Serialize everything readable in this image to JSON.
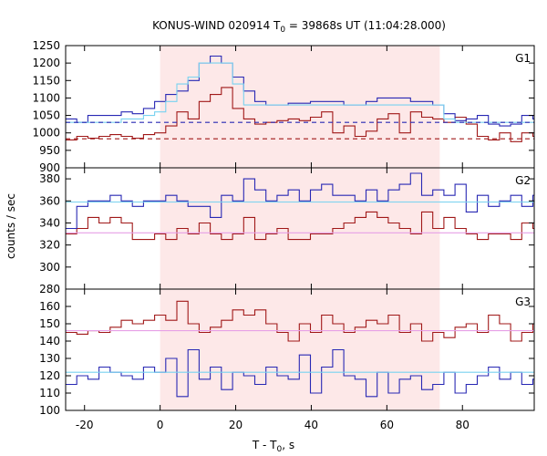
{
  "chart_data": {
    "type": "line",
    "title": "KONUS-WIND 020914 T",
    "title_sub": "0",
    "title_tail": " = 39868s UT (11:04:28.000)",
    "xlabel": "T - T",
    "xlabel_sub": "0",
    "xlabel_tail": ", s",
    "ylabel": "counts / sec",
    "xlim": [
      -25,
      99
    ],
    "xticks": [
      -20,
      0,
      20,
      40,
      60,
      80
    ],
    "shaded_interval": [
      0,
      74
    ],
    "colors": {
      "shade": "#fde8e8",
      "dark_red": "#a01818",
      "blue": "#2828b4",
      "cyan": "#78d2f0",
      "pink": "#e6a0e6"
    },
    "panels": [
      {
        "name": "G1",
        "ylim": [
          900,
          1250
        ],
        "yticks": [
          900,
          950,
          1000,
          1050,
          1100,
          1150,
          1200,
          1250
        ],
        "series": [
          {
            "color": "dark_red",
            "step": 2.944,
            "x0": -25,
            "values": [
              980,
              990,
              985,
              990,
              995,
              990,
              985,
              995,
              1000,
              1020,
              1060,
              1040,
              1090,
              1110,
              1130,
              1070,
              1040,
              1025,
              1030,
              1035,
              1040,
              1035,
              1045,
              1060,
              1000,
              1020,
              990,
              1005,
              1040,
              1055,
              1000,
              1060,
              1045,
              1040,
              1030,
              1045,
              1025,
              990,
              980,
              1000,
              975,
              1000,
              990,
              980
            ]
          },
          {
            "color": "blue",
            "step": 2.944,
            "x0": -25,
            "values": [
              1040,
              1030,
              1050,
              1050,
              1050,
              1060,
              1055,
              1070,
              1090,
              1110,
              1120,
              1150,
              1200,
              1220,
              1200,
              1160,
              1120,
              1090,
              1080,
              1080,
              1085,
              1085,
              1090,
              1090,
              1090,
              1080,
              1080,
              1090,
              1100,
              1100,
              1100,
              1090,
              1090,
              1080,
              1055,
              1035,
              1040,
              1050,
              1025,
              1020,
              1025,
              1050,
              1040,
              1000
            ]
          },
          {
            "color": "cyan",
            "step": 2.944,
            "x0": -25,
            "values": [
              1030,
              1030,
              1030,
              1030,
              1030,
              1040,
              1040,
              1050,
              1060,
              1090,
              1140,
              1160,
              1200,
              1200,
              1200,
              1140,
              1080,
              1080,
              1080,
              1080,
              1080,
              1080,
              1080,
              1080,
              1080,
              1080,
              1080,
              1080,
              1080,
              1080,
              1080,
              1080,
              1080,
              1080,
              1040,
              1030,
              1030,
              1030,
              1030,
              1030,
              1030,
              1030,
              1030,
              1030
            ]
          }
        ],
        "hlines": [
          {
            "color": "blue",
            "value": 1030,
            "dash": true
          },
          {
            "color": "dark_red",
            "value": 983,
            "dash": true
          }
        ]
      },
      {
        "name": "G2",
        "ylim": [
          280,
          390
        ],
        "yticks": [
          280,
          300,
          320,
          340,
          360,
          380
        ],
        "series": [
          {
            "color": "dark_red",
            "step": 2.944,
            "x0": -25,
            "values": [
              330,
              335,
              345,
              340,
              345,
              340,
              325,
              325,
              330,
              325,
              335,
              330,
              340,
              330,
              325,
              330,
              345,
              325,
              330,
              335,
              325,
              325,
              330,
              330,
              335,
              340,
              345,
              350,
              345,
              340,
              335,
              330,
              350,
              335,
              345,
              335,
              330,
              325,
              330,
              330,
              325,
              340,
              335,
              330
            ]
          },
          {
            "color": "blue",
            "step": 2.944,
            "x0": -25,
            "values": [
              335,
              355,
              360,
              360,
              365,
              360,
              355,
              360,
              360,
              365,
              360,
              355,
              355,
              345,
              365,
              360,
              380,
              370,
              360,
              365,
              370,
              360,
              370,
              375,
              365,
              365,
              360,
              370,
              360,
              370,
              375,
              385,
              365,
              370,
              365,
              375,
              350,
              365,
              355,
              360,
              365,
              355,
              365,
              360
            ]
          },
          {
            "color": "cyan",
            "step": 2.944,
            "x0": -25,
            "values": [
              359,
              359,
              359,
              359,
              359,
              359,
              359,
              359,
              359,
              359,
              359,
              359,
              359,
              359,
              359,
              359,
              359,
              359,
              359,
              359,
              359,
              359,
              359,
              359,
              359,
              359,
              359,
              359,
              359,
              359,
              359,
              359,
              359,
              359,
              359,
              359,
              359,
              359,
              359,
              359,
              359,
              359,
              359,
              359
            ]
          },
          {
            "color": "pink",
            "step": 2.944,
            "x0": -25,
            "values": [
              331,
              331,
              331,
              331,
              331,
              331,
              331,
              331,
              331,
              331,
              331,
              331,
              331,
              331,
              331,
              331,
              331,
              331,
              331,
              331,
              331,
              331,
              331,
              331,
              331,
              331,
              331,
              331,
              331,
              331,
              331,
              331,
              331,
              331,
              331,
              331,
              331,
              331,
              331,
              331,
              331,
              331,
              331,
              331
            ]
          }
        ],
        "hlines": []
      },
      {
        "name": "G3",
        "ylim": [
          100,
          170
        ],
        "yticks": [
          100,
          110,
          120,
          130,
          140,
          150,
          160
        ],
        "series": [
          {
            "color": "dark_red",
            "step": 2.944,
            "x0": -25,
            "values": [
              145,
              144,
              146,
              145,
              148,
              152,
              150,
              152,
              155,
              152,
              163,
              150,
              145,
              148,
              152,
              158,
              155,
              158,
              150,
              145,
              140,
              150,
              145,
              155,
              150,
              145,
              148,
              152,
              150,
              155,
              145,
              150,
              140,
              145,
              142,
              148,
              150,
              145,
              155,
              150,
              140,
              145,
              150,
              140
            ]
          },
          {
            "color": "blue",
            "step": 2.944,
            "x0": -25,
            "values": [
              115,
              120,
              118,
              125,
              122,
              120,
              118,
              125,
              122,
              130,
              108,
              135,
              118,
              125,
              112,
              122,
              120,
              115,
              125,
              120,
              118,
              132,
              110,
              125,
              135,
              120,
              118,
              108,
              122,
              110,
              118,
              120,
              112,
              115,
              122,
              110,
              115,
              120,
              125,
              118,
              122,
              115,
              118,
              112
            ]
          },
          {
            "color": "cyan",
            "step": 2.944,
            "x0": -25,
            "values": [
              122,
              122,
              122,
              122,
              122,
              122,
              122,
              122,
              122,
              122,
              122,
              122,
              122,
              122,
              122,
              122,
              122,
              122,
              122,
              122,
              122,
              122,
              122,
              122,
              122,
              122,
              122,
              122,
              122,
              122,
              122,
              122,
              122,
              122,
              122,
              122,
              122,
              122,
              122,
              122,
              122,
              122,
              122,
              122
            ]
          },
          {
            "color": "pink",
            "step": 2.944,
            "x0": -25,
            "values": [
              146,
              146,
              146,
              146,
              146,
              146,
              146,
              146,
              146,
              146,
              146,
              146,
              146,
              146,
              146,
              146,
              146,
              146,
              146,
              146,
              146,
              146,
              146,
              146,
              146,
              146,
              146,
              146,
              146,
              146,
              146,
              146,
              146,
              146,
              146,
              146,
              146,
              146,
              146,
              146,
              146,
              146,
              146,
              146
            ]
          }
        ],
        "hlines": []
      }
    ]
  }
}
